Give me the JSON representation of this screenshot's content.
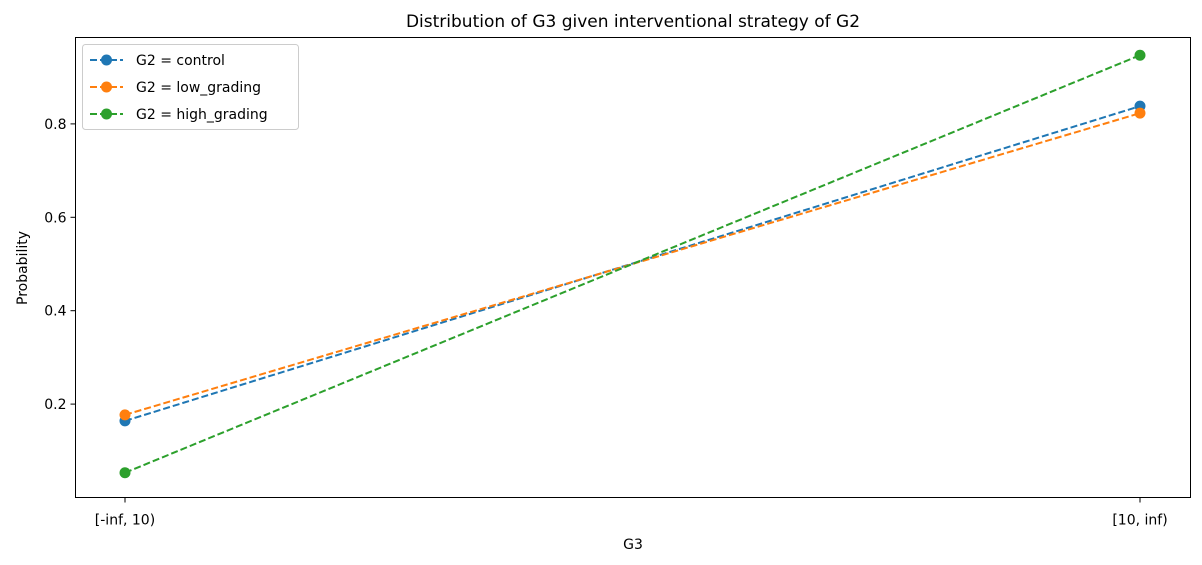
{
  "chart_data": {
    "type": "line",
    "title": "Distribution of G3 given interventional strategy of G2",
    "xlabel": "G3",
    "ylabel": "Probability",
    "categories": [
      "[-inf, 10)",
      "[10, inf)"
    ],
    "ylim": [
      0.0,
      0.985
    ],
    "yticks": [
      "0.2",
      "0.4",
      "0.6",
      "0.8"
    ],
    "grid": false,
    "legend_position": "top-left",
    "line_style": "dashed",
    "marker": "circle",
    "series": [
      {
        "name": "G2 = control",
        "color": "#1f77b4",
        "values": [
          0.164,
          0.838
        ]
      },
      {
        "name": "G2 = low_grading",
        "color": "#ff7f0e",
        "values": [
          0.177,
          0.823
        ]
      },
      {
        "name": "G2 = high_grading",
        "color": "#2ca02c",
        "values": [
          0.053,
          0.947
        ]
      }
    ]
  }
}
